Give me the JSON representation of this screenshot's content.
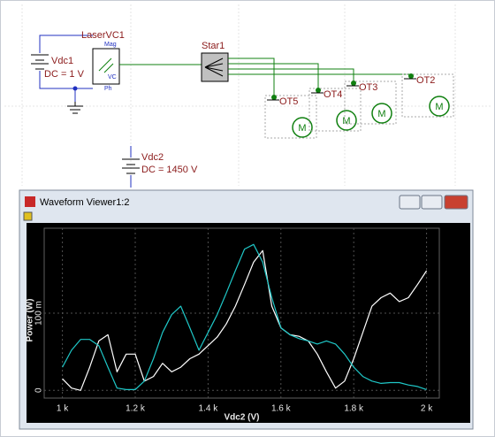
{
  "schematic": {
    "laser": {
      "name": "LaserVC1",
      "ports": [
        "Mag",
        "VC",
        "Ph"
      ]
    },
    "sources": [
      {
        "name": "Vdc1",
        "value": "DC = 1 V"
      },
      {
        "name": "Vdc2",
        "value": "DC = 1450 V"
      }
    ],
    "star": "Star1",
    "outputs": [
      "OT5",
      "OT4",
      "OT3",
      "OT2"
    ]
  },
  "waveform_viewer": {
    "title": "Waveform Viewer1:2",
    "chart_data": {
      "type": "line",
      "xlabel": "Vdc2 (V)",
      "ylabel": "Power (W)",
      "x": [
        1000,
        1025,
        1050,
        1075,
        1100,
        1125,
        1150,
        1175,
        1200,
        1225,
        1250,
        1275,
        1300,
        1325,
        1350,
        1375,
        1400,
        1425,
        1450,
        1475,
        1500,
        1525,
        1550,
        1575,
        1600,
        1625,
        1650,
        1675,
        1700,
        1725,
        1750,
        1775,
        1800,
        1825,
        1850,
        1875,
        1900,
        1925,
        1950,
        1975,
        2000
      ],
      "series": [
        {
          "color": "#ffffff",
          "values": [
            0.015,
            0.003,
            0,
            0.03,
            0.064,
            0.072,
            0.024,
            0.047,
            0.047,
            0.012,
            0.018,
            0.035,
            0.024,
            0.03,
            0.041,
            0.047,
            0.058,
            0.069,
            0.086,
            0.109,
            0.137,
            0.166,
            0.181,
            0.109,
            0.081,
            0.072,
            0.07,
            0.064,
            0.047,
            0.024,
            0.003,
            0.012,
            0.041,
            0.075,
            0.109,
            0.12,
            0.126,
            0.115,
            0.12,
            0.137,
            0.155
          ]
        },
        {
          "color": "#1fc8c8",
          "values": [
            0.03,
            0.052,
            0.066,
            0.066,
            0.058,
            0.03,
            0.003,
            0.001,
            0.001,
            0.012,
            0.041,
            0.075,
            0.098,
            0.109,
            0.081,
            0.052,
            0.075,
            0.098,
            0.126,
            0.155,
            0.183,
            0.189,
            0.166,
            0.12,
            0.081,
            0.072,
            0.067,
            0.064,
            0.06,
            0.064,
            0.06,
            0.047,
            0.03,
            0.018,
            0.012,
            0.009,
            0.01,
            0.01,
            0.007,
            0.005,
            0.001
          ]
        }
      ],
      "xlim": [
        950,
        2035
      ],
      "ylim": [
        -0.01,
        0.21
      ],
      "xticks": [
        {
          "value": 1000,
          "label": "1 k"
        },
        {
          "value": 1200,
          "label": "1.2 k"
        },
        {
          "value": 1400,
          "label": "1.4 k"
        },
        {
          "value": 1600,
          "label": "1.6 k"
        },
        {
          "value": 1800,
          "label": "1.8 k"
        },
        {
          "value": 2000,
          "label": "2 k"
        }
      ],
      "yticks": [
        0,
        {
          "value": 0.1,
          "label": "100 m"
        }
      ],
      "grid": true
    }
  }
}
